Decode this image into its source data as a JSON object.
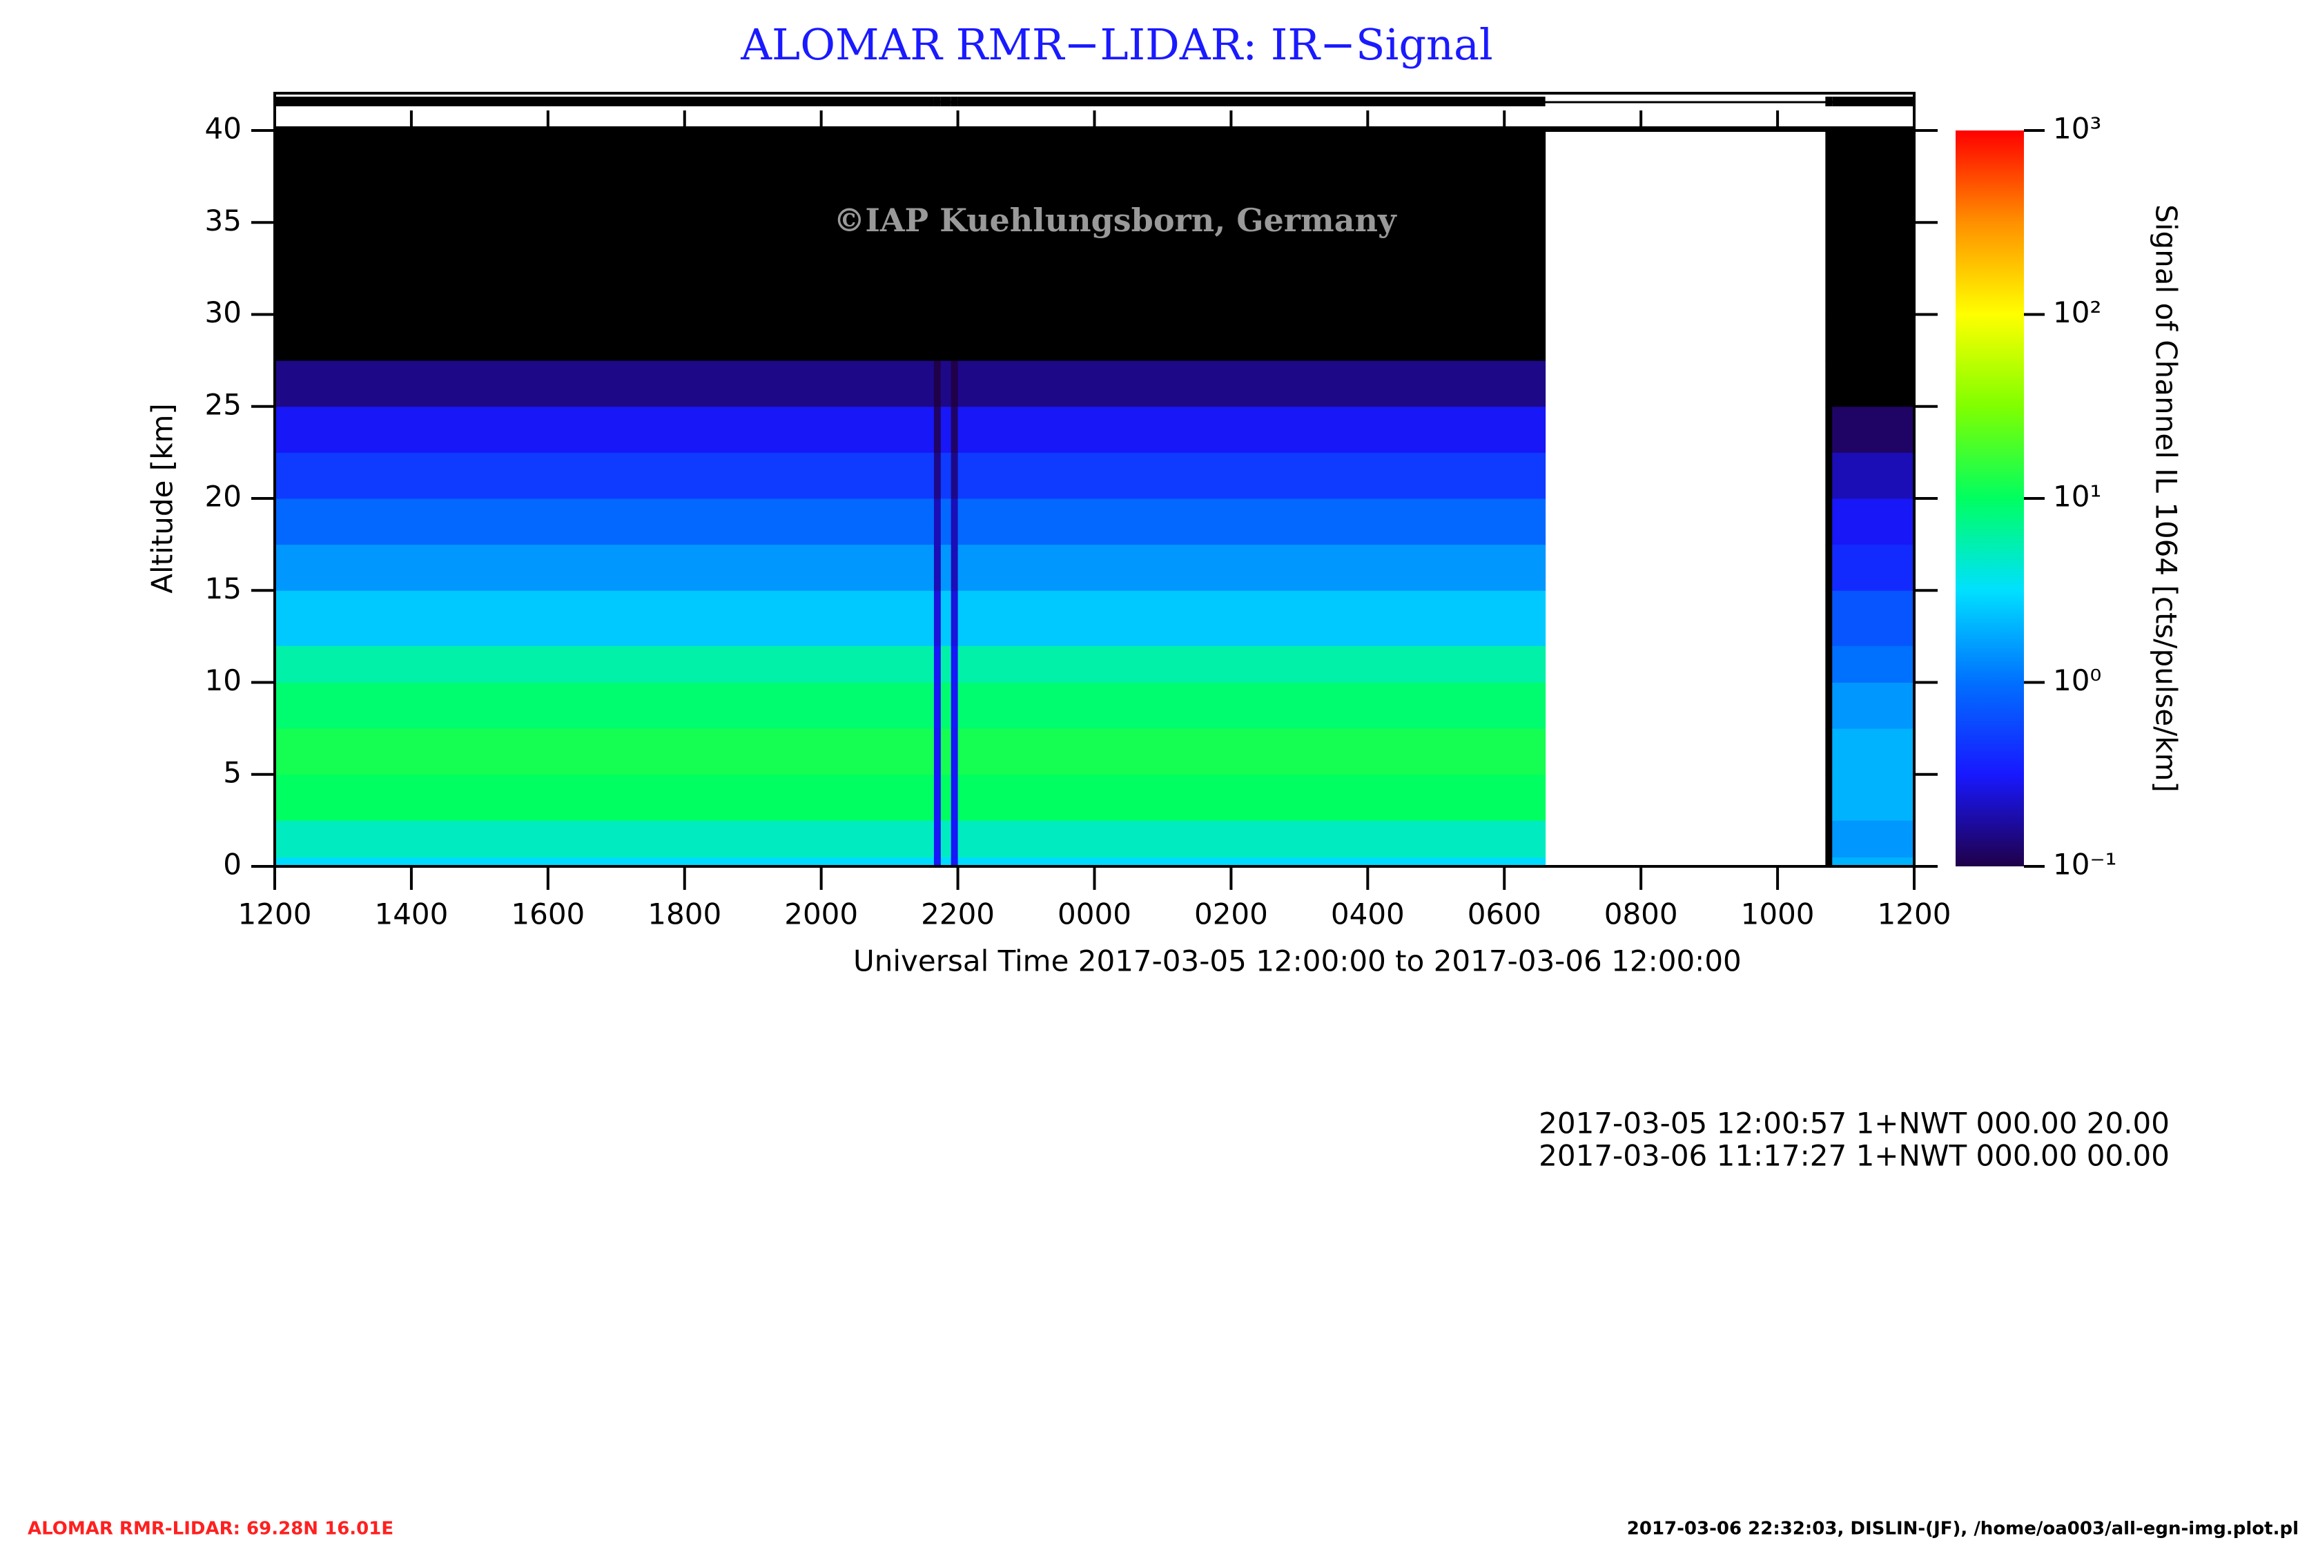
{
  "chart_data": {
    "type": "heatmap",
    "title": "ALOMAR RMR−LIDAR: IR−Signal",
    "watermark": "©IAP Kuehlungsborn, Germany",
    "x_label": "Universal Time 2017-03-05 12:00:00 to 2017-03-06 12:00:00",
    "y_label": "Altitude [km]",
    "colorbar_label": "Signal of Channel IL 1064 [cts/pulse/km]",
    "x_bins": [
      0,
      9.65,
      9.75,
      9.9,
      10.0,
      18.6,
      22.7,
      22.8,
      24
    ],
    "y_bins": [
      0,
      0.5,
      2.5,
      5,
      7.5,
      10,
      12,
      15,
      17.5,
      20,
      22.5,
      25,
      27.5,
      30,
      40
    ],
    "values": [
      [
        3,
        5,
        10,
        12,
        9,
        6,
        2.5,
        1.5,
        0.9,
        0.5,
        0.3,
        0.15,
        0,
        0
      ],
      [
        0.3,
        0.3,
        0.3,
        0.3,
        0.3,
        0.3,
        0.25,
        0.2,
        0.2,
        0.15,
        0.12,
        0.1,
        0,
        0
      ],
      [
        3,
        5,
        10,
        12,
        9,
        6,
        2.5,
        1.5,
        0.9,
        0.5,
        0.3,
        0.15,
        0,
        0
      ],
      [
        0.3,
        0.3,
        0.3,
        0.3,
        0.3,
        0.3,
        0.25,
        0.2,
        0.2,
        0.15,
        0.12,
        0.1,
        0,
        0
      ],
      [
        3,
        5,
        10,
        12,
        9,
        6,
        2.5,
        1.5,
        0.9,
        0.5,
        0.3,
        0.15,
        0,
        0
      ],
      null,
      [
        0,
        0,
        0,
        0,
        0,
        0,
        0,
        0,
        0,
        0,
        0,
        0,
        0,
        0
      ],
      [
        2,
        1.5,
        2,
        2,
        1.5,
        1,
        0.7,
        0.4,
        0.3,
        0.2,
        0.12,
        0,
        0,
        0
      ]
    ],
    "xlim": [
      0,
      24
    ],
    "xticks": [
      {
        "value": 0,
        "label": "1200"
      },
      {
        "value": 2,
        "label": "1400"
      },
      {
        "value": 4,
        "label": "1600"
      },
      {
        "value": 6,
        "label": "1800"
      },
      {
        "value": 8,
        "label": "2000"
      },
      {
        "value": 10,
        "label": "2200"
      },
      {
        "value": 12,
        "label": "0000"
      },
      {
        "value": 14,
        "label": "0200"
      },
      {
        "value": 16,
        "label": "0400"
      },
      {
        "value": 18,
        "label": "0600"
      },
      {
        "value": 20,
        "label": "0800"
      },
      {
        "value": 22,
        "label": "1000"
      },
      {
        "value": 24,
        "label": "1200"
      }
    ],
    "ylim": [
      0,
      40
    ],
    "yticks": [
      0,
      5,
      10,
      15,
      20,
      25,
      30,
      35,
      40
    ],
    "clim": [
      0.1,
      1000
    ],
    "log_color_scale": true,
    "cticks": [
      {
        "value": 0.1,
        "label": "10⁻¹"
      },
      {
        "value": 1,
        "label": "10⁰"
      },
      {
        "value": 10,
        "label": "10¹"
      },
      {
        "value": 100,
        "label": "10²"
      },
      {
        "value": 1000,
        "label": "10³"
      }
    ],
    "colormap": [
      "#200048",
      "#1818ff",
      "#0070ff",
      "#00e0ff",
      "#00ff60",
      "#80ff00",
      "#ffff00",
      "#ff9000",
      "#ff0000"
    ],
    "under_color": "#000000",
    "info_lines": [
      "2017-03-05 12:00:57 1+NWT 000.00 20.00",
      "2017-03-06 11:17:27 1+NWT 000.00 00.00"
    ],
    "footer_left": "ALOMAR RMR-LIDAR: 69.28N 16.01E",
    "footer_right": "2017-03-06 22:32:03, DISLIN-(JF), /home/oa003/all-egn-img.plot.pl"
  }
}
